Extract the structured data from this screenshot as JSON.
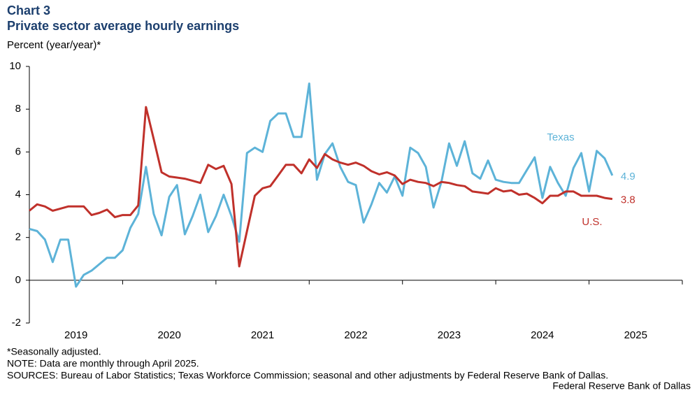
{
  "chart_data": {
    "type": "line",
    "title": "Chart 3",
    "subtitle": "Private sector average hourly earnings",
    "ylabel": "Percent (year/year)*",
    "x": [
      2019,
      2019.083,
      2019.167,
      2019.25,
      2019.333,
      2019.417,
      2019.5,
      2019.583,
      2019.667,
      2019.75,
      2019.833,
      2019.917,
      2020,
      2020.083,
      2020.167,
      2020.25,
      2020.333,
      2020.417,
      2020.5,
      2020.583,
      2020.667,
      2020.75,
      2020.833,
      2020.917,
      2021,
      2021.083,
      2021.167,
      2021.25,
      2021.333,
      2021.417,
      2021.5,
      2021.583,
      2021.667,
      2021.75,
      2021.833,
      2021.917,
      2022,
      2022.083,
      2022.167,
      2022.25,
      2022.333,
      2022.417,
      2022.5,
      2022.583,
      2022.667,
      2022.75,
      2022.833,
      2022.917,
      2023,
      2023.083,
      2023.167,
      2023.25,
      2023.333,
      2023.417,
      2023.5,
      2023.583,
      2023.667,
      2023.75,
      2023.833,
      2023.917,
      2024,
      2024.083,
      2024.167,
      2024.25,
      2024.333,
      2024.417,
      2024.5,
      2024.583,
      2024.667,
      2024.75,
      2024.833,
      2024.917,
      2025,
      2025.083,
      2025.167,
      2025.25
    ],
    "series": [
      {
        "name": "Texas",
        "color": "#5db3d8",
        "values": [
          2.4,
          2.3,
          1.9,
          0.85,
          1.9,
          1.9,
          -0.3,
          0.25,
          0.45,
          0.75,
          1.05,
          1.05,
          1.4,
          2.45,
          3.1,
          5.3,
          3.1,
          2.1,
          3.9,
          4.45,
          2.15,
          3.0,
          4.0,
          2.25,
          3.0,
          4.0,
          3.0,
          1.8,
          5.95,
          6.2,
          6.0,
          7.45,
          7.8,
          7.8,
          6.7,
          6.7,
          9.2,
          4.7,
          5.9,
          6.4,
          5.3,
          4.6,
          4.45,
          2.7,
          3.55,
          4.55,
          4.1,
          4.85,
          3.95,
          6.2,
          5.95,
          5.3,
          3.4,
          4.6,
          6.4,
          5.35,
          6.5,
          5.0,
          4.75,
          5.6,
          4.7,
          4.6,
          4.55,
          4.55,
          5.15,
          5.75,
          3.85,
          5.3,
          4.55,
          3.95,
          5.25,
          5.95,
          4.15,
          6.05,
          5.7,
          4.9
        ]
      },
      {
        "name": "U.S.",
        "color": "#c0312b",
        "values": [
          3.25,
          3.55,
          3.45,
          3.25,
          3.35,
          3.45,
          3.45,
          3.45,
          3.05,
          3.15,
          3.3,
          2.95,
          3.05,
          3.05,
          3.5,
          8.1,
          6.6,
          5.05,
          4.85,
          4.8,
          4.75,
          4.65,
          4.55,
          5.4,
          5.2,
          5.35,
          4.5,
          0.65,
          2.3,
          3.95,
          4.3,
          4.4,
          4.9,
          5.4,
          5.4,
          5.0,
          5.65,
          5.25,
          5.9,
          5.65,
          5.5,
          5.4,
          5.5,
          5.35,
          5.1,
          4.95,
          5.05,
          4.9,
          4.5,
          4.7,
          4.6,
          4.55,
          4.4,
          4.6,
          4.55,
          4.45,
          4.4,
          4.15,
          4.1,
          4.05,
          4.3,
          4.15,
          4.2,
          4.0,
          4.05,
          3.85,
          3.6,
          3.95,
          3.95,
          4.15,
          4.15,
          3.95,
          3.95,
          3.95,
          3.85,
          3.8
        ]
      }
    ],
    "xlim": [
      2019,
      2026
    ],
    "xticks": [
      {
        "value": 2019.5,
        "label": "2019"
      },
      {
        "value": 2020.5,
        "label": "2020"
      },
      {
        "value": 2021.5,
        "label": "2021"
      },
      {
        "value": 2022.5,
        "label": "2022"
      },
      {
        "value": 2023.5,
        "label": "2023"
      },
      {
        "value": 2024.5,
        "label": "2024"
      },
      {
        "value": 2025.5,
        "label": "2025"
      }
    ],
    "ylim": [
      -2,
      10
    ],
    "yticks": [
      -2,
      0,
      2,
      4,
      6,
      8,
      10
    ],
    "notes": [
      "*Seasonally adjusted.",
      "NOTE: Data are monthly through April 2025.",
      "SOURCES: Bureau of Labor Statistics; Texas Workforce Commission; seasonal and other adjustments by Federal Reserve Bank of Dallas."
    ],
    "credit": "Federal Reserve Bank of Dallas"
  }
}
